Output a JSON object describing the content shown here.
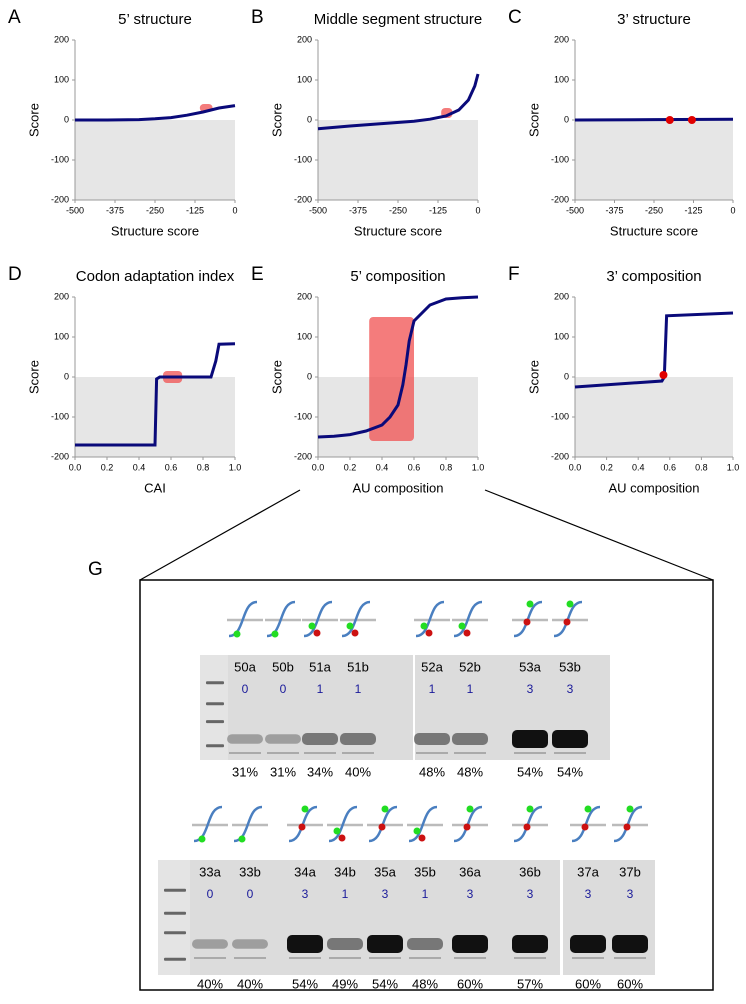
{
  "chart_data": [
    {
      "type": "line",
      "letter": "A",
      "title": "5’ structure",
      "xlabel": "Structure score",
      "ylabel": "Score",
      "color": "#0a0a7a",
      "xlim": [
        -500,
        0
      ],
      "ylim": [
        -200,
        200
      ],
      "xticks": [
        -500,
        -375,
        -250,
        -125,
        0
      ],
      "yticks": [
        -200,
        -100,
        0,
        100,
        200
      ],
      "x": [
        -500,
        -400,
        -300,
        -250,
        -200,
        -150,
        -100,
        -50,
        0
      ],
      "values": [
        0,
        0,
        1,
        3,
        6,
        12,
        20,
        30,
        36
      ],
      "highlight": {
        "x": [
          -110,
          -70
        ],
        "y": [
          20,
          40
        ]
      }
    },
    {
      "type": "line",
      "letter": "B",
      "title": "Middle segment structure",
      "xlabel": "Structure score",
      "ylabel": "Score",
      "color": "#0a0a7a",
      "xlim": [
        -500,
        0
      ],
      "ylim": [
        -200,
        200
      ],
      "xticks": [
        -500,
        -375,
        -250,
        -125,
        0
      ],
      "yticks": [
        -200,
        -100,
        0,
        100,
        200
      ],
      "x": [
        -500,
        -400,
        -300,
        -200,
        -150,
        -100,
        -60,
        -30,
        -10,
        0
      ],
      "values": [
        -22,
        -15,
        -9,
        -3,
        2,
        10,
        25,
        50,
        85,
        115
      ],
      "highlight": {
        "x": [
          -115,
          -80
        ],
        "y": [
          5,
          30
        ]
      }
    },
    {
      "type": "line",
      "letter": "C",
      "title": "3’ structure",
      "xlabel": "Structure score",
      "ylabel": "Score",
      "color": "#0a0a7a",
      "xlim": [
        -500,
        0
      ],
      "ylim": [
        -200,
        200
      ],
      "xticks": [
        -500,
        -375,
        -250,
        -125,
        0
      ],
      "yticks": [
        -200,
        -100,
        0,
        100,
        200
      ],
      "x": [
        -500,
        -250,
        0
      ],
      "values": [
        0,
        1,
        2
      ],
      "points": {
        "x": [
          -200,
          -130
        ],
        "y": [
          0,
          0
        ]
      }
    },
    {
      "type": "line",
      "letter": "D",
      "title": "Codon adaptation index",
      "xlabel": "CAI",
      "ylabel": "Score",
      "color": "#0a0a7a",
      "xlim": [
        0,
        1
      ],
      "ylim": [
        -200,
        200
      ],
      "xticks": [
        {
          "value": 0,
          "label": "0.0"
        },
        {
          "value": 0.2,
          "label": "0.2"
        },
        {
          "value": 0.4,
          "label": "0.4"
        },
        {
          "value": 0.6,
          "label": "0.6"
        },
        {
          "value": 0.8,
          "label": "0.8"
        },
        {
          "value": 1,
          "label": "1.0"
        }
      ],
      "yticks": [
        -200,
        -100,
        0,
        100,
        200
      ],
      "x": [
        0,
        0.5,
        0.51,
        0.53,
        0.85,
        0.88,
        0.9,
        1.0
      ],
      "values": [
        -170,
        -170,
        -5,
        0,
        0,
        40,
        82,
        83
      ],
      "highlight": {
        "x": [
          0.55,
          0.67
        ],
        "y": [
          -15,
          15
        ]
      }
    },
    {
      "type": "line",
      "letter": "E",
      "title": "5’ composition",
      "xlabel": "AU composition",
      "ylabel": "Score",
      "color": "#0a0a7a",
      "xlim": [
        0,
        1
      ],
      "ylim": [
        -200,
        200
      ],
      "xticks": [
        {
          "value": 0,
          "label": "0.0"
        },
        {
          "value": 0.2,
          "label": "0.2"
        },
        {
          "value": 0.4,
          "label": "0.4"
        },
        {
          "value": 0.6,
          "label": "0.6"
        },
        {
          "value": 0.8,
          "label": "0.8"
        },
        {
          "value": 1,
          "label": "1.0"
        }
      ],
      "yticks": [
        -200,
        -100,
        0,
        100,
        200
      ],
      "x": [
        0,
        0.1,
        0.2,
        0.3,
        0.4,
        0.45,
        0.5,
        0.53,
        0.55,
        0.57,
        0.6,
        0.7,
        0.8,
        0.9,
        1.0
      ],
      "values": [
        -150,
        -148,
        -144,
        -135,
        -120,
        -100,
        -70,
        -20,
        30,
        90,
        140,
        180,
        195,
        198,
        200
      ],
      "highlight": {
        "x": [
          0.32,
          0.6
        ],
        "y": [
          -160,
          150
        ]
      }
    },
    {
      "type": "line",
      "letter": "F",
      "title": "3’ composition",
      "xlabel": "AU composition",
      "ylabel": "Score",
      "color": "#0a0a7a",
      "xlim": [
        0,
        1
      ],
      "ylim": [
        -200,
        200
      ],
      "xticks": [
        {
          "value": 0,
          "label": "0.0"
        },
        {
          "value": 0.2,
          "label": "0.2"
        },
        {
          "value": 0.4,
          "label": "0.4"
        },
        {
          "value": 0.6,
          "label": "0.6"
        },
        {
          "value": 0.8,
          "label": "0.8"
        },
        {
          "value": 1,
          "label": "1.0"
        }
      ],
      "yticks": [
        -200,
        -100,
        0,
        100,
        200
      ],
      "x": [
        0,
        0.55,
        0.565,
        0.58,
        1.0
      ],
      "values": [
        -25,
        -10,
        0,
        153,
        160
      ],
      "points": {
        "x": [
          0.56
        ],
        "y": [
          5
        ]
      }
    }
  ],
  "gel": {
    "letter": "G",
    "blots": [
      {
        "lanes": [
          {
            "label": "50a",
            "count": 0,
            "percent": "31%"
          },
          {
            "label": "50b",
            "count": 0,
            "percent": "31%"
          },
          {
            "label": "51a",
            "count": 1,
            "percent": "34%"
          },
          {
            "label": "51b",
            "count": 1,
            "percent": "40%"
          },
          {
            "label": "52a",
            "count": 1,
            "percent": "48%"
          },
          {
            "label": "52b",
            "count": 1,
            "percent": "48%"
          },
          {
            "label": "53a",
            "count": 3,
            "percent": "54%"
          },
          {
            "label": "53b",
            "count": 3,
            "percent": "54%"
          }
        ]
      },
      {
        "lanes": [
          {
            "label": "33a",
            "count": 0,
            "percent": "40%"
          },
          {
            "label": "33b",
            "count": 0,
            "percent": "40%"
          },
          {
            "label": "34a",
            "count": 3,
            "percent": "54%"
          },
          {
            "label": "34b",
            "count": 1,
            "percent": "49%"
          },
          {
            "label": "35a",
            "count": 3,
            "percent": "54%"
          },
          {
            "label": "35b",
            "count": 1,
            "percent": "48%"
          },
          {
            "label": "36a",
            "count": 3,
            "percent": "60%"
          },
          {
            "label": "36b",
            "count": 3,
            "percent": "57%"
          },
          {
            "label": "37a",
            "count": 3,
            "percent": "60%"
          },
          {
            "label": "37b",
            "count": 3,
            "percent": "60%"
          }
        ]
      }
    ]
  }
}
